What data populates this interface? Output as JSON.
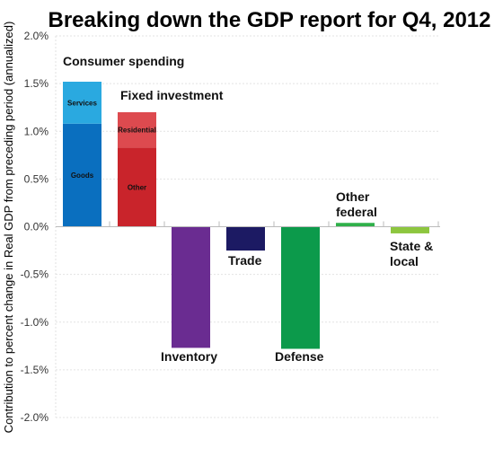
{
  "chart_data": {
    "type": "bar",
    "title": "Breaking down the GDP report for Q4, 2012",
    "ylabel": "Contribution to percent change in Real GDP from preceding period (annualized)",
    "ylim": [
      -2.0,
      2.0
    ],
    "yticks": [
      "2.0%",
      "1.5%",
      "1.0%",
      "0.5%",
      "0.0%",
      "-0.5%",
      "-1.0%",
      "-1.5%",
      "-2.0%"
    ],
    "grid": true,
    "categories": [
      {
        "name": "Consumer spending",
        "label_lines": [
          "Consumer spending"
        ],
        "segments": [
          {
            "name": "Goods",
            "value": 1.08,
            "color": "#0a6fbf"
          },
          {
            "name": "Services",
            "value": 0.44,
            "color": "#2aa9e0"
          }
        ]
      },
      {
        "name": "Fixed investment",
        "label_lines": [
          "Fixed investment"
        ],
        "segments": [
          {
            "name": "Other",
            "value": 0.83,
            "color": "#c9242b"
          },
          {
            "name": "Residential",
            "value": 0.37,
            "color": "#dd4a4f"
          }
        ]
      },
      {
        "name": "Inventory",
        "label_lines": [
          "Inventory"
        ],
        "segments": [
          {
            "name": "",
            "value": -1.27,
            "color": "#6a2c91"
          }
        ]
      },
      {
        "name": "Trade",
        "label_lines": [
          "Trade"
        ],
        "segments": [
          {
            "name": "",
            "value": -0.25,
            "color": "#1c1a63"
          }
        ]
      },
      {
        "name": "Defense",
        "label_lines": [
          "Defense"
        ],
        "segments": [
          {
            "name": "",
            "value": -1.28,
            "color": "#0c9a4b"
          }
        ]
      },
      {
        "name": "Other federal",
        "label_lines": [
          "Other",
          "federal"
        ],
        "segments": [
          {
            "name": "",
            "value": 0.04,
            "color": "#2fb04a"
          }
        ]
      },
      {
        "name": "State & local",
        "label_lines": [
          "State &",
          "local"
        ],
        "segments": [
          {
            "name": "",
            "value": -0.07,
            "color": "#8dc63f"
          }
        ]
      }
    ]
  }
}
